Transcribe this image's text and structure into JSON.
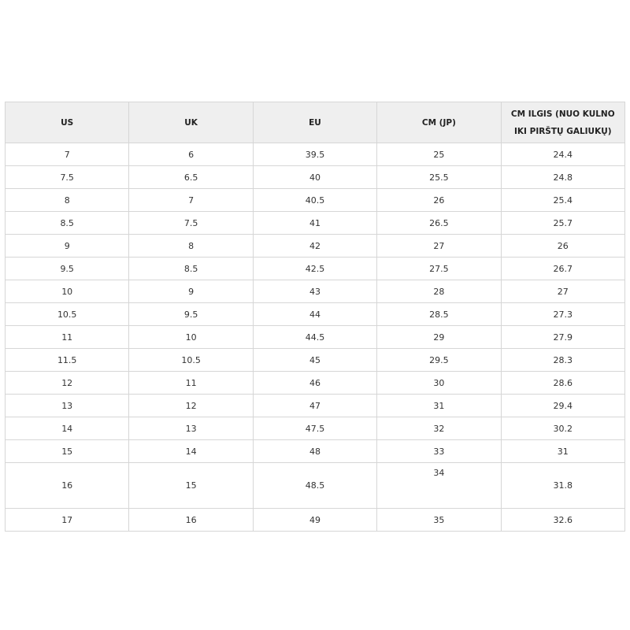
{
  "headers": [
    "US",
    "UK",
    "EU",
    "CM (JP)",
    "CM ILGIS (NUO KULNO IKI PIRŠTŲ GALIUKŲ)"
  ],
  "rows": [
    [
      "7",
      "6",
      "39.5",
      "25",
      "24.4"
    ],
    [
      "7.5",
      "6.5",
      "40",
      "25.5",
      "24.8"
    ],
    [
      "8",
      "7",
      "40.5",
      "26",
      "25.4"
    ],
    [
      "8.5",
      "7.5",
      "41",
      "26.5",
      "25.7"
    ],
    [
      "9",
      "8",
      "42",
      "27",
      "26"
    ],
    [
      "9.5",
      "8.5",
      "42.5",
      "27.5",
      "26.7"
    ],
    [
      "10",
      "9",
      "43",
      "28",
      "27"
    ],
    [
      "10.5",
      "9.5",
      "44",
      "28.5",
      "27.3"
    ],
    [
      "11",
      "10",
      "44.5",
      "29",
      "27.9"
    ],
    [
      "11.5",
      "10.5",
      "45",
      "29.5",
      "28.3"
    ],
    [
      "12",
      "11",
      "46",
      "30",
      "28.6"
    ],
    [
      "13",
      "12",
      "47",
      "31",
      "29.4"
    ],
    [
      "14",
      "13",
      "47.5",
      "32",
      "30.2"
    ],
    [
      "15",
      "14",
      "48",
      "33",
      "31"
    ],
    [
      "16",
      "15",
      "48.5",
      "34",
      "31.8"
    ],
    [
      "17",
      "16",
      "49",
      "35",
      "32.6"
    ]
  ]
}
